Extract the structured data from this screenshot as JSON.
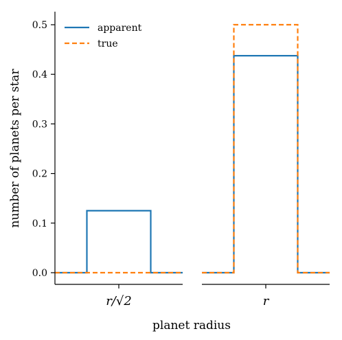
{
  "chart_data": {
    "type": "line",
    "style": "step",
    "xlabel": "planet radius",
    "ylabel": "number of planets per star",
    "ylim": [
      0,
      0.5
    ],
    "yticks": [
      "0.0",
      "0.1",
      "0.2",
      "0.3",
      "0.4",
      "0.5"
    ],
    "panels": [
      {
        "category": "r/√2",
        "series": [
          {
            "name": "apparent",
            "color": "#1f77b4",
            "linestyle": "solid",
            "segments": [
              [
                0,
                0.0
              ],
              [
                0.25,
                0.125
              ],
              [
                0.75,
                0.0
              ]
            ]
          },
          {
            "name": "true",
            "color": "#ff7f0e",
            "linestyle": "dashed",
            "segments": [
              [
                0,
                0.0
              ]
            ]
          }
        ]
      },
      {
        "category": "r",
        "series": [
          {
            "name": "apparent",
            "color": "#1f77b4",
            "linestyle": "solid",
            "segments": [
              [
                0,
                0.0
              ],
              [
                0.25,
                0.4375
              ],
              [
                0.75,
                0.0
              ]
            ]
          },
          {
            "name": "true",
            "color": "#ff7f0e",
            "linestyle": "dashed",
            "segments": [
              [
                0,
                0.0
              ],
              [
                0.25,
                0.5
              ],
              [
                0.75,
                0.0
              ]
            ]
          }
        ]
      }
    ],
    "legend": {
      "position": "top-left",
      "entries": [
        {
          "label": "apparent",
          "color": "#1f77b4",
          "linestyle": "solid"
        },
        {
          "label": "true",
          "color": "#ff7f0e",
          "linestyle": "dashed"
        }
      ]
    },
    "grid": false
  }
}
